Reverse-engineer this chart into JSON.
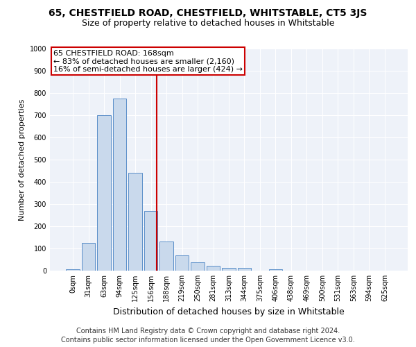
{
  "title": "65, CHESTFIELD ROAD, CHESTFIELD, WHITSTABLE, CT5 3JS",
  "subtitle": "Size of property relative to detached houses in Whitstable",
  "xlabel": "Distribution of detached houses by size in Whitstable",
  "ylabel": "Number of detached properties",
  "bar_labels": [
    "0sqm",
    "31sqm",
    "63sqm",
    "94sqm",
    "125sqm",
    "156sqm",
    "188sqm",
    "219sqm",
    "250sqm",
    "281sqm",
    "313sqm",
    "344sqm",
    "375sqm",
    "406sqm",
    "438sqm",
    "469sqm",
    "500sqm",
    "531sqm",
    "563sqm",
    "594sqm",
    "625sqm"
  ],
  "bar_values": [
    5,
    125,
    700,
    775,
    440,
    270,
    130,
    70,
    38,
    22,
    11,
    11,
    0,
    5,
    0,
    0,
    0,
    0,
    0,
    0,
    0
  ],
  "bar_color": "#c9d9ec",
  "bar_edge_color": "#5b8fc9",
  "vline_color": "#cc0000",
  "annotation_text": "65 CHESTFIELD ROAD: 168sqm\n← 83% of detached houses are smaller (2,160)\n16% of semi-detached houses are larger (424) →",
  "annotation_box_color": "#ffffff",
  "annotation_box_edge_color": "#cc0000",
  "ylim": [
    0,
    1000
  ],
  "yticks": [
    0,
    100,
    200,
    300,
    400,
    500,
    600,
    700,
    800,
    900,
    1000
  ],
  "footer_line1": "Contains HM Land Registry data © Crown copyright and database right 2024.",
  "footer_line2": "Contains public sector information licensed under the Open Government Licence v3.0.",
  "background_color": "#eef2f9",
  "grid_color": "#ffffff",
  "fig_background_color": "#ffffff",
  "title_fontsize": 10,
  "subtitle_fontsize": 9,
  "xlabel_fontsize": 9,
  "ylabel_fontsize": 8,
  "tick_fontsize": 7,
  "annotation_fontsize": 8,
  "footer_fontsize": 7
}
